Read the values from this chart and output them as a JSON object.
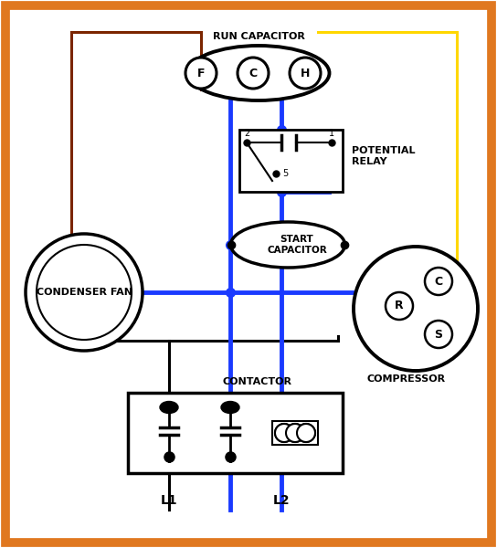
{
  "bg": "#ffffff",
  "border_color": "#e07820",
  "border_lw": 7,
  "lw_bk": 2.2,
  "lw_bl": 3.5,
  "lw_br": 2.2,
  "lw_yw": 2.2,
  "col_black": "#000000",
  "col_blue": "#1a3aff",
  "col_brown": "#7B2500",
  "col_yellow": "#FFD700",
  "labels": {
    "run_cap_title": "RUN CAPACITOR",
    "potential_relay": "POTENTIAL\nRELAY",
    "start_cap": "START\nCAPACITOR",
    "condenser_fan": "CONDENSER FAN",
    "compressor": "COMPRESSOR",
    "contactor": "CONTACTOR",
    "L1": "L1",
    "L2": "L2",
    "F": "F",
    "C": "C",
    "H": "H",
    "S": "S",
    "R": "R",
    "Ccomp": "C",
    "n2": "2",
    "n1": "1",
    "n5": "5"
  }
}
